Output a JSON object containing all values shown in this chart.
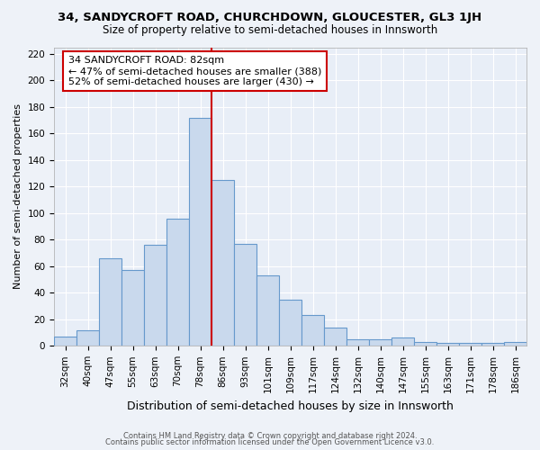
{
  "title": "34, SANDYCROFT ROAD, CHURCHDOWN, GLOUCESTER, GL3 1JH",
  "subtitle": "Size of property relative to semi-detached houses in Innsworth",
  "xlabel": "Distribution of semi-detached houses by size in Innsworth",
  "ylabel": "Number of semi-detached properties",
  "categories": [
    "32sqm",
    "40sqm",
    "47sqm",
    "55sqm",
    "63sqm",
    "70sqm",
    "78sqm",
    "86sqm",
    "93sqm",
    "101sqm",
    "109sqm",
    "117sqm",
    "124sqm",
    "132sqm",
    "140sqm",
    "147sqm",
    "155sqm",
    "163sqm",
    "171sqm",
    "178sqm",
    "186sqm"
  ],
  "values": [
    7,
    12,
    66,
    57,
    76,
    96,
    172,
    125,
    77,
    53,
    35,
    23,
    14,
    5,
    5,
    6,
    3,
    2,
    2,
    2,
    3
  ],
  "bar_color": "#c9d9ed",
  "bar_edge_color": "#6699cc",
  "bg_color": "#e8eef7",
  "grid_color": "#ffffff",
  "vline_x_index": 6,
  "vline_color": "#cc0000",
  "annotation_title": "34 SANDYCROFT ROAD: 82sqm",
  "annotation_line1": "← 47% of semi-detached houses are smaller (388)",
  "annotation_line2": "52% of semi-detached houses are larger (430) →",
  "annotation_box_color": "#cc0000",
  "ylim": [
    0,
    225
  ],
  "yticks": [
    0,
    20,
    40,
    60,
    80,
    100,
    120,
    140,
    160,
    180,
    200,
    220
  ],
  "footer1": "Contains HM Land Registry data © Crown copyright and database right 2024.",
  "footer2": "Contains public sector information licensed under the Open Government Licence v3.0.",
  "fig_facecolor": "#eef2f8",
  "title_fontsize": 9.5,
  "subtitle_fontsize": 8.5,
  "ylabel_fontsize": 8,
  "xlabel_fontsize": 9,
  "tick_fontsize": 7.5,
  "footer_fontsize": 6
}
